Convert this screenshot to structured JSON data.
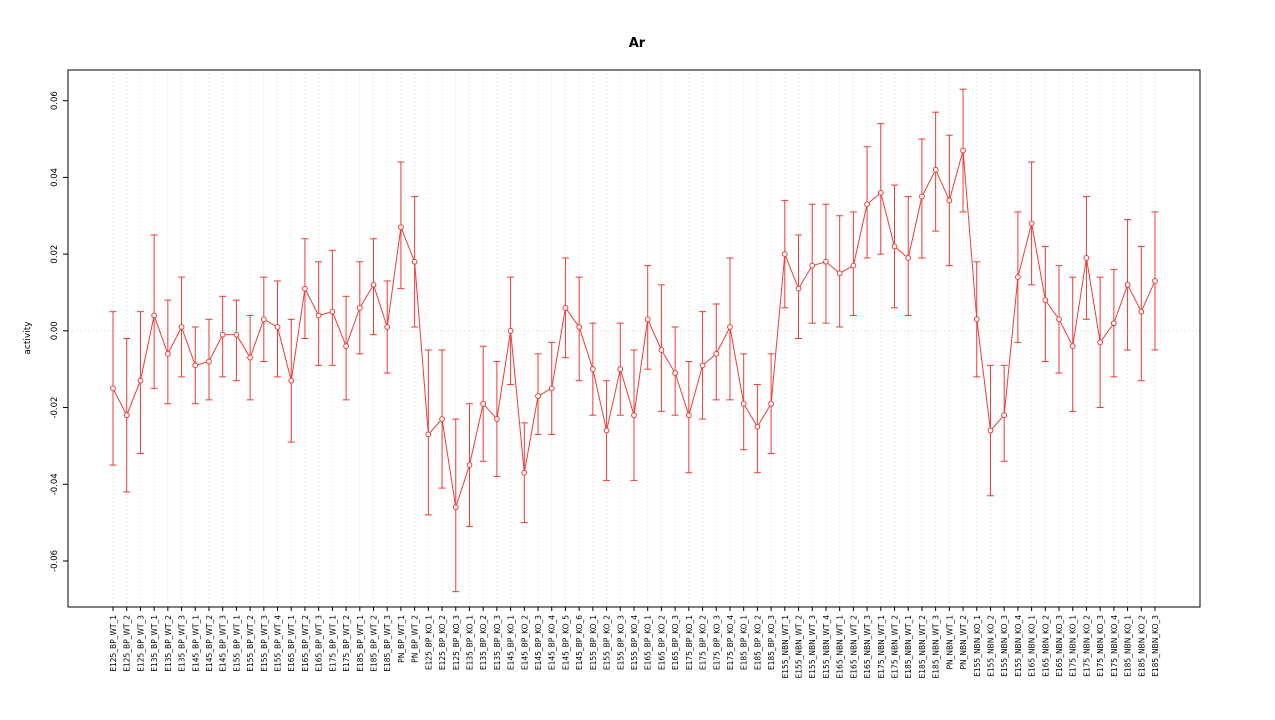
{
  "chart_data": {
    "type": "line",
    "title": "Ar",
    "ylabel": "activity",
    "xlabel": "",
    "ylim": [
      -0.072,
      0.068
    ],
    "grid": true,
    "ytick_values": [
      -0.06,
      -0.04,
      -0.02,
      0.0,
      0.02,
      0.04,
      0.06
    ],
    "ytick_labels": [
      "-0.06",
      "-0.04",
      "-0.02",
      "0.00",
      "0.02",
      "0.04",
      "0.06"
    ],
    "colors": {
      "series": "#ef3b36",
      "grid": "#d6d6d6",
      "axis": "#000000",
      "background": "#ffffff"
    },
    "categories": [
      "E125_BP_WT_1",
      "E125_BP_WT_2",
      "E125_BP_WT_3",
      "E135_BP_WT_1",
      "E135_BP_WT_2",
      "E135_BP_WT_3",
      "E145_BP_WT_1",
      "E145_BP_WT_2",
      "E145_BP_WT_3",
      "E155_BP_WT_1",
      "E155_BP_WT_2",
      "E155_BP_WT_3",
      "E155_BP_WT_4",
      "E165_BP_WT_1",
      "E165_BP_WT_2",
      "E165_BP_WT_3",
      "E175_BP_WT_1",
      "E175_BP_WT_2",
      "E185_BP_WT_1",
      "E185_BP_WT_2",
      "E185_BP_WT_3",
      "PN_BP_WT_1",
      "PN_BP_WT_2",
      "E125_BP_KO_1",
      "E125_BP_KO_2",
      "E125_BP_KO_3",
      "E135_BP_KO_1",
      "E135_BP_KO_2",
      "E135_BP_KO_3",
      "E145_BP_KO_1",
      "E145_BP_KO_2",
      "E145_BP_KO_3",
      "E145_BP_KO_4",
      "E145_BP_KO_5",
      "E145_BP_KO_6",
      "E155_BP_KO_1",
      "E155_BP_KO_2",
      "E155_BP_KO_3",
      "E155_BP_KO_4",
      "E165_BP_KO_1",
      "E165_BP_KO_2",
      "E165_BP_KO_3",
      "E175_BP_KO_1",
      "E175_BP_KO_2",
      "E175_BP_KO_3",
      "E175_BP_KO_4",
      "E185_BP_KO_1",
      "E185_BP_KO_2",
      "E185_BP_KO_3",
      "E155_NBN_WT_1",
      "E155_NBN_WT_2",
      "E155_NBN_WT_3",
      "E155_NBN_WT_4",
      "E165_NBN_WT_1",
      "E165_NBN_WT_2",
      "E165_NBN_WT_3",
      "E175_NBN_WT_1",
      "E175_NBN_WT_2",
      "E185_NBN_WT_1",
      "E185_NBN_WT_2",
      "E185_NBN_WT_3",
      "PN_NBN_WT_1",
      "PN_NBN_WT_2",
      "E155_NBN_KO_1",
      "E155_NBN_KO_2",
      "E155_NBN_KO_3",
      "E155_NBN_KO_4",
      "E165_NBN_KO_1",
      "E165_NBN_KO_2",
      "E165_NBN_KO_3",
      "E175_NBN_KO_1",
      "E175_NBN_KO_2",
      "E175_NBN_KO_3",
      "E175_NBN_KO_4",
      "E185_NBN_KO_1",
      "E185_NBN_KO_2",
      "E185_NBN_KO_3"
    ],
    "values": [
      -0.015,
      -0.022,
      -0.013,
      0.004,
      -0.006,
      0.001,
      -0.009,
      -0.008,
      -0.001,
      -0.001,
      -0.007,
      0.003,
      0.001,
      -0.013,
      0.011,
      0.004,
      0.005,
      -0.004,
      0.006,
      0.012,
      0.001,
      0.027,
      0.018,
      -0.027,
      -0.023,
      -0.046,
      -0.035,
      -0.019,
      -0.023,
      0.0,
      -0.037,
      -0.017,
      -0.015,
      0.006,
      0.001,
      -0.01,
      -0.026,
      -0.01,
      -0.022,
      0.003,
      -0.005,
      -0.011,
      -0.022,
      -0.009,
      -0.006,
      0.001,
      -0.019,
      -0.025,
      -0.019,
      0.02,
      0.011,
      0.017,
      0.018,
      0.015,
      0.017,
      0.033,
      0.036,
      0.022,
      0.019,
      0.035,
      0.042,
      0.034,
      0.047,
      0.003,
      -0.026,
      -0.022,
      0.014,
      0.028,
      0.008,
      0.003,
      -0.004,
      0.019,
      -0.003,
      0.002,
      0.012,
      0.005,
      0.013
    ],
    "lower": [
      -0.035,
      -0.042,
      -0.032,
      -0.015,
      -0.019,
      -0.012,
      -0.019,
      -0.018,
      -0.012,
      -0.013,
      -0.018,
      -0.008,
      -0.012,
      -0.029,
      -0.002,
      -0.009,
      -0.009,
      -0.018,
      -0.006,
      -0.001,
      -0.011,
      0.011,
      0.001,
      -0.048,
      -0.041,
      -0.068,
      -0.051,
      -0.034,
      -0.038,
      -0.014,
      -0.05,
      -0.027,
      -0.027,
      -0.007,
      -0.013,
      -0.022,
      -0.039,
      -0.022,
      -0.039,
      -0.01,
      -0.021,
      -0.022,
      -0.037,
      -0.023,
      -0.018,
      -0.018,
      -0.031,
      -0.037,
      -0.032,
      0.006,
      -0.002,
      0.002,
      0.002,
      0.001,
      0.004,
      0.019,
      0.02,
      0.006,
      0.004,
      0.019,
      0.026,
      0.017,
      0.031,
      -0.012,
      -0.043,
      -0.034,
      -0.003,
      0.012,
      -0.008,
      -0.011,
      -0.021,
      0.003,
      -0.02,
      -0.012,
      -0.005,
      -0.013,
      -0.005
    ],
    "upper": [
      0.005,
      -0.002,
      0.005,
      0.025,
      0.008,
      0.014,
      0.001,
      0.003,
      0.009,
      0.008,
      0.004,
      0.014,
      0.013,
      0.003,
      0.024,
      0.018,
      0.021,
      0.009,
      0.018,
      0.024,
      0.013,
      0.044,
      0.035,
      -0.005,
      -0.005,
      -0.023,
      -0.019,
      -0.004,
      -0.008,
      0.014,
      -0.024,
      -0.006,
      -0.003,
      0.019,
      0.014,
      0.002,
      -0.013,
      0.002,
      -0.005,
      0.017,
      0.012,
      0.001,
      -0.008,
      0.005,
      0.007,
      0.019,
      -0.006,
      -0.014,
      -0.006,
      0.034,
      0.025,
      0.033,
      0.033,
      0.03,
      0.031,
      0.048,
      0.054,
      0.038,
      0.035,
      0.05,
      0.057,
      0.051,
      0.063,
      0.018,
      -0.009,
      -0.009,
      0.031,
      0.044,
      0.022,
      0.017,
      0.014,
      0.035,
      0.014,
      0.016,
      0.029,
      0.022,
      0.031
    ]
  }
}
